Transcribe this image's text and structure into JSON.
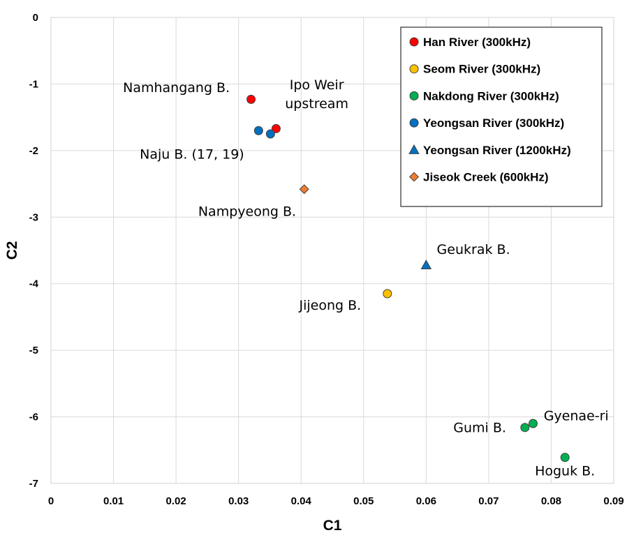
{
  "chart_data": {
    "type": "scatter",
    "xlabel": "C1",
    "ylabel": "C2",
    "xlim": [
      0,
      0.09
    ],
    "ylim": [
      -7,
      0
    ],
    "grid": true,
    "legend_position": "top-right",
    "x_ticks": [
      "0",
      "0.01",
      "0.02",
      "0.03",
      "0.04",
      "0.05",
      "0.06",
      "0.07",
      "0.08",
      "0.09"
    ],
    "y_ticks": [
      "0",
      "-1",
      "-2",
      "-3",
      "-4",
      "-5",
      "-6",
      "-7"
    ],
    "series": [
      {
        "name": "Han River (300kHz)",
        "marker": "circle",
        "color": "#ff0000",
        "points": [
          {
            "x": 0.032,
            "y": -1.23
          },
          {
            "x": 0.036,
            "y": -1.67
          }
        ]
      },
      {
        "name": "Seom River (300kHz)",
        "marker": "circle",
        "color": "#ffc000",
        "points": [
          {
            "x": 0.0538,
            "y": -4.15
          }
        ]
      },
      {
        "name": "Nakdong River (300kHz)",
        "marker": "circle",
        "color": "#00b050",
        "points": [
          {
            "x": 0.0758,
            "y": -6.16
          },
          {
            "x": 0.0771,
            "y": -6.1
          },
          {
            "x": 0.0822,
            "y": -6.61
          }
        ]
      },
      {
        "name": "Yeongsan River (300kHz)",
        "marker": "circle",
        "color": "#0070c0",
        "points": [
          {
            "x": 0.0332,
            "y": -1.7
          },
          {
            "x": 0.0351,
            "y": -1.75
          }
        ]
      },
      {
        "name": "Yeongsan River (1200kHz)",
        "marker": "triangle",
        "color": "#0070c0",
        "points": [
          {
            "x": 0.06,
            "y": -3.72
          }
        ]
      },
      {
        "name": "Jiseok Creek (600kHz)",
        "marker": "diamond",
        "color": "#ed7d31",
        "points": [
          {
            "x": 0.0405,
            "y": -2.58
          }
        ]
      }
    ],
    "annotations": [
      {
        "lines": [
          "Namhangang B."
        ],
        "x": 0.0286,
        "y": -1.12,
        "anchor": "end"
      },
      {
        "lines": [
          "Ipo Weir",
          "upstream"
        ],
        "x": 0.0425,
        "y": -1.08,
        "anchor": "middle"
      },
      {
        "lines": [
          "Naju B. (17, 19)"
        ],
        "x": 0.0309,
        "y": -2.12,
        "anchor": "end"
      },
      {
        "lines": [
          "Nampyeong B."
        ],
        "x": 0.0392,
        "y": -2.98,
        "anchor": "end"
      },
      {
        "lines": [
          "Geukrak B."
        ],
        "x": 0.0617,
        "y": -3.55,
        "anchor": "start"
      },
      {
        "lines": [
          "Jijeong B."
        ],
        "x": 0.0496,
        "y": -4.39,
        "anchor": "end"
      },
      {
        "lines": [
          "Gumi B."
        ],
        "x": 0.0728,
        "y": -6.23,
        "anchor": "end"
      },
      {
        "lines": [
          "Gyenae-ri"
        ],
        "x": 0.0788,
        "y": -6.05,
        "anchor": "start"
      },
      {
        "lines": [
          "Hoguk B."
        ],
        "x": 0.0822,
        "y": -6.88,
        "anchor": "middle"
      }
    ]
  }
}
